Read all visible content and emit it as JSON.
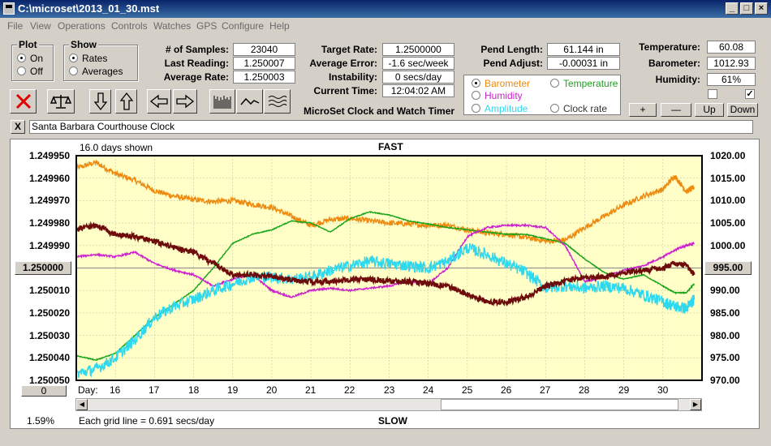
{
  "window": {
    "title": "C:\\microset\\2013_01_30.mst"
  },
  "menu": [
    "File",
    "View",
    "Operations",
    "Controls",
    "Watches",
    "GPS",
    "Configure",
    "Help"
  ],
  "plot_group": {
    "title": "Plot",
    "on": "On",
    "off": "Off"
  },
  "show_group": {
    "title": "Show",
    "rates": "Rates",
    "averages": "Averages"
  },
  "stats": {
    "samples_label": "# of Samples:",
    "samples": "23040",
    "last_label": "Last Reading:",
    "last": "1.250007",
    "avg_label": "Average Rate:",
    "avg": "1.250003"
  },
  "rates": {
    "target_label": "Target Rate:",
    "target": "1.2500000",
    "error_label": "Average Error:",
    "error": "-1.6 sec/week",
    "instab_label": "Instability:",
    "instab": "0 secs/day",
    "time_label": "Current Time:",
    "time": "12:04:02 AM",
    "app_name": "MicroSet Clock and Watch Timer"
  },
  "pendulum": {
    "length_label": "Pend Length:",
    "length": "61.144 in",
    "adjust_label": "Pend Adjust:",
    "adjust": "-0.00031 in"
  },
  "env": {
    "temp_label": "Temperature:",
    "temp": "60.08",
    "baro_label": "Barometer:",
    "baro": "1012.93",
    "hum_label": "Humidity:",
    "hum": "61%"
  },
  "overlay_options": {
    "barometer": "Barometer",
    "temperature": "Temperature",
    "humidity": "Humidity",
    "amplitude": "Amplitude",
    "clock_rate": "Clock rate"
  },
  "scale_buttons": {
    "plus": "+",
    "minus": "—",
    "up": "Up",
    "down": "Down"
  },
  "description": {
    "close": "X",
    "text": "Santa Barbara Courthouse Clock"
  },
  "colors": {
    "barometer": "#ee8a10",
    "temperature": "#19a319",
    "humidity": "#cc22cc",
    "amplitude": "#2ed8ee",
    "clock_rate": "#6e0c0c",
    "plot_bg": "#ffffc8"
  },
  "icons": {
    "stop": "x-icon",
    "balance": "balance-icon",
    "down": "arrow-down-icon",
    "up": "arrow-up-icon",
    "left": "arrow-left-icon",
    "right": "arrow-right-icon",
    "bars": "bar-plot-icon",
    "wave": "wave-plot-icon",
    "multi": "multi-wave-icon"
  },
  "chart_data": {
    "type": "line",
    "title": "FAST",
    "bottom_label": "SLOW",
    "days_shown": "16.0 days shown",
    "grid_note": "Each grid line = 0.691 secs/day",
    "zoom_percent": "1.59%",
    "left_current_value": "1.250000",
    "right_current_value": "995.00",
    "offset_value": "0",
    "x_label": "Day:",
    "x_ticks": [
      "16",
      "17",
      "18",
      "19",
      "20",
      "21",
      "22",
      "23",
      "24",
      "25",
      "26",
      "27",
      "28",
      "29",
      "30"
    ],
    "x_range": [
      15.0,
      31.0
    ],
    "y_left_ticks": [
      "1.249950",
      "1.249960",
      "1.249970",
      "1.249980",
      "1.249990",
      "1.250010",
      "1.250020",
      "1.250030",
      "1.250040",
      "1.250050"
    ],
    "y_left_range": [
      1.24995,
      1.25005
    ],
    "y_right_ticks": [
      "1020.00",
      "1015.00",
      "1010.00",
      "1005.00",
      "1000.00",
      "990.00",
      "985.00",
      "980.00",
      "975.00",
      "970.00"
    ],
    "y_right_range": [
      970,
      1020
    ],
    "grid": true,
    "series": [
      {
        "key": "barometer",
        "axis": "right",
        "noise": 0.6,
        "x": [
          15.0,
          15.5,
          16.0,
          16.5,
          17.0,
          17.5,
          18.0,
          18.5,
          19.0,
          19.5,
          20.0,
          20.5,
          21.0,
          21.5,
          22.0,
          22.5,
          23.0,
          23.5,
          24.0,
          24.5,
          25.0,
          25.5,
          26.0,
          26.5,
          27.0,
          27.5,
          28.0,
          28.5,
          29.0,
          29.5,
          30.0,
          30.3,
          30.6,
          30.8
        ],
        "y": [
          1017.2,
          1018.5,
          1016.0,
          1014.5,
          1012.2,
          1011.0,
          1010.2,
          1009.8,
          1010.0,
          1009.2,
          1008.5,
          1006.5,
          1004.5,
          1005.8,
          1006.0,
          1005.5,
          1005.0,
          1004.8,
          1004.5,
          1004.5,
          1003.5,
          1002.8,
          1002.5,
          1001.8,
          1001.0,
          1001.2,
          1004.0,
          1006.5,
          1009.0,
          1011.0,
          1012.5,
          1015.5,
          1012.0,
          1013.0
        ]
      },
      {
        "key": "temperature",
        "axis": "right",
        "noise": 0.1,
        "x": [
          15.0,
          15.5,
          16.0,
          16.5,
          17.0,
          17.5,
          18.0,
          18.5,
          19.0,
          19.5,
          20.0,
          20.5,
          21.0,
          21.5,
          22.0,
          22.5,
          23.0,
          23.5,
          24.0,
          24.5,
          25.0,
          25.5,
          26.0,
          26.5,
          27.0,
          27.5,
          28.0,
          28.5,
          29.0,
          29.5,
          30.0,
          30.3,
          30.6,
          30.8
        ],
        "y": [
          975.5,
          974.5,
          976.0,
          980.0,
          984.0,
          987.0,
          990.0,
          995.0,
          1000.5,
          1002.5,
          1003.5,
          1005.5,
          1005.0,
          1003.0,
          1006.0,
          1007.5,
          1006.8,
          1005.5,
          1004.8,
          1004.0,
          1003.5,
          1003.0,
          1002.5,
          1002.5,
          1001.5,
          1000.5,
          997.0,
          994.0,
          992.5,
          993.5,
          991.0,
          989.5,
          989.5,
          991.5
        ]
      },
      {
        "key": "humidity",
        "axis": "right",
        "noise": 0.2,
        "x": [
          15.0,
          15.5,
          16.0,
          16.5,
          17.0,
          17.5,
          18.0,
          18.5,
          19.0,
          19.5,
          20.0,
          20.5,
          21.0,
          21.5,
          22.0,
          22.5,
          23.0,
          23.5,
          24.0,
          24.5,
          25.0,
          25.5,
          26.0,
          26.5,
          27.0,
          27.5,
          28.0,
          28.5,
          29.0,
          29.5,
          30.0,
          30.3,
          30.6,
          30.8
        ],
        "y": [
          997.5,
          998.0,
          997.5,
          998.5,
          996.0,
          994.5,
          993.5,
          991.0,
          992.5,
          993.5,
          990.0,
          988.5,
          990.0,
          990.5,
          990.0,
          990.5,
          991.0,
          992.0,
          991.5,
          995.0,
          1002.0,
          1004.0,
          1004.5,
          1004.5,
          1004.0,
          1000.0,
          992.0,
          993.0,
          994.5,
          995.5,
          997.5,
          999.0,
          1000.0,
          1000.5
        ]
      },
      {
        "key": "amplitude",
        "axis": "right",
        "noise": 1.3,
        "x": [
          15.0,
          15.5,
          16.0,
          16.5,
          17.0,
          17.5,
          18.0,
          18.5,
          19.0,
          19.5,
          20.0,
          20.5,
          21.0,
          21.5,
          22.0,
          22.5,
          23.0,
          23.5,
          24.0,
          24.5,
          25.0,
          25.5,
          26.0,
          26.5,
          27.0,
          27.5,
          28.0,
          28.5,
          29.0,
          29.5,
          30.0,
          30.3,
          30.6,
          30.8
        ],
        "y": [
          971.5,
          972.5,
          975.0,
          979.0,
          984.0,
          986.5,
          988.0,
          990.0,
          991.5,
          993.0,
          993.0,
          992.5,
          993.0,
          994.5,
          995.5,
          996.5,
          996.0,
          995.5,
          995.0,
          996.5,
          999.5,
          998.0,
          996.0,
          994.0,
          990.5,
          991.0,
          990.5,
          991.0,
          990.5,
          989.0,
          987.5,
          986.5,
          986.0,
          988.0
        ]
      },
      {
        "key": "clock_rate",
        "axis": "left",
        "noise": 1.2e-06,
        "x": [
          15.0,
          15.5,
          16.0,
          16.5,
          17.0,
          17.5,
          18.0,
          18.5,
          19.0,
          19.5,
          20.0,
          20.5,
          21.0,
          21.5,
          22.0,
          22.5,
          23.0,
          23.5,
          24.0,
          24.5,
          25.0,
          25.5,
          26.0,
          26.5,
          27.0,
          27.5,
          28.0,
          28.5,
          29.0,
          29.5,
          30.0,
          30.3,
          30.6,
          30.8
        ],
        "y": [
          1.249983,
          1.249981,
          1.249985,
          1.249986,
          1.249988,
          1.249991,
          1.249993,
          1.249998,
          1.250003,
          1.250003,
          1.250004,
          1.250005,
          1.250006,
          1.250006,
          1.250005,
          1.250005,
          1.250006,
          1.250006,
          1.250007,
          1.250008,
          1.250012,
          1.250015,
          1.250015,
          1.250013,
          1.250008,
          1.250006,
          1.250004,
          1.250004,
          1.250002,
          1.250001,
          1.25,
          1.249998,
          1.249999,
          1.250003
        ]
      }
    ]
  }
}
